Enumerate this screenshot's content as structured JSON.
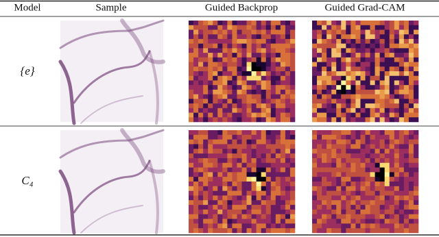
{
  "table": {
    "header": [
      "Model",
      "Sample",
      "Guided Backprop",
      "Guided Grad-CAM"
    ],
    "rows": [
      "{e}",
      "C₄"
    ]
  }
}
